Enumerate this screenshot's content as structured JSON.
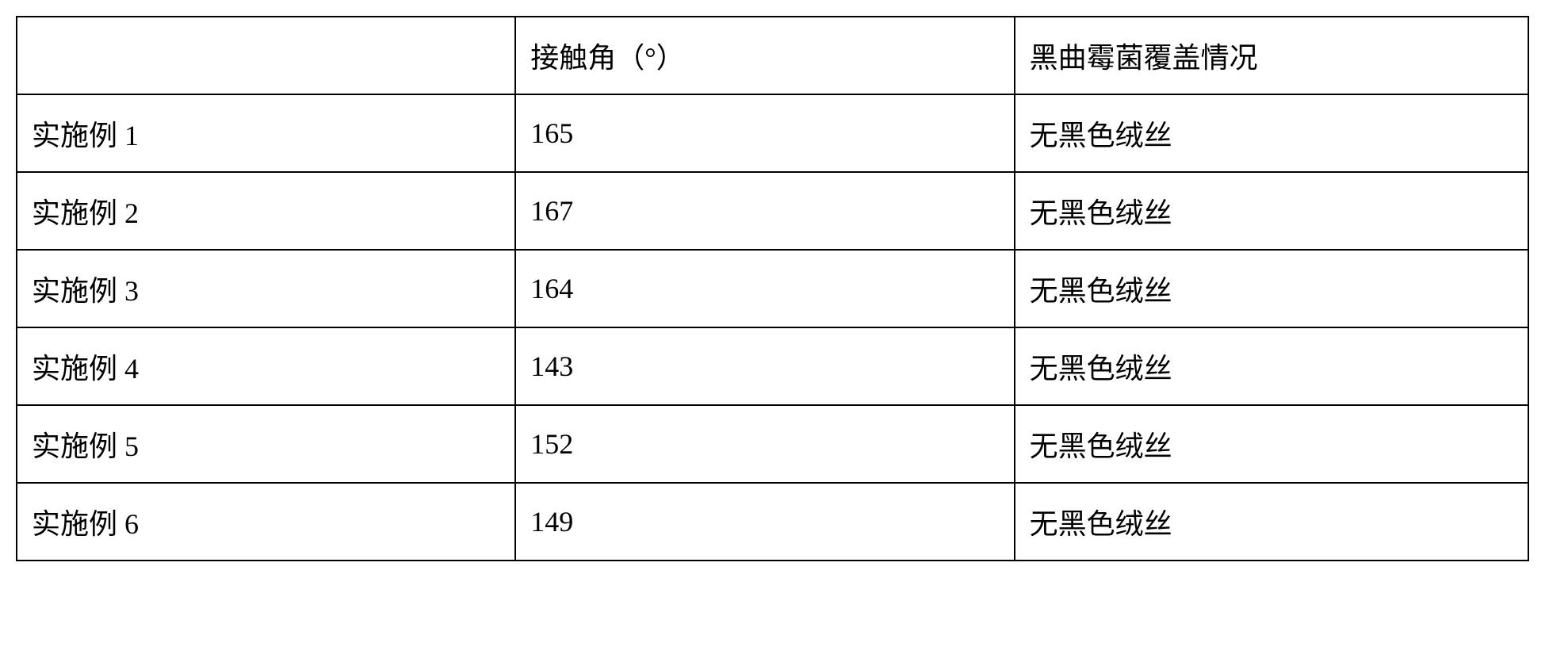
{
  "table": {
    "columns": [
      "",
      "接触角（°）",
      "黑曲霉菌覆盖情况"
    ],
    "rows": [
      [
        "实施例 1",
        "165",
        "无黑色绒丝"
      ],
      [
        "实施例 2",
        "167",
        "无黑色绒丝"
      ],
      [
        "实施例 3",
        "164",
        "无黑色绒丝"
      ],
      [
        "实施例 4",
        "143",
        "无黑色绒丝"
      ],
      [
        "实施例 5",
        "152",
        "无黑色绒丝"
      ],
      [
        "实施例 6",
        "149",
        "无黑色绒丝"
      ]
    ],
    "border_color": "#000000",
    "background_color": "#ffffff",
    "text_color": "#000000",
    "font_size": 36,
    "border_width": 2,
    "column_widths": [
      "33%",
      "33%",
      "34%"
    ]
  }
}
